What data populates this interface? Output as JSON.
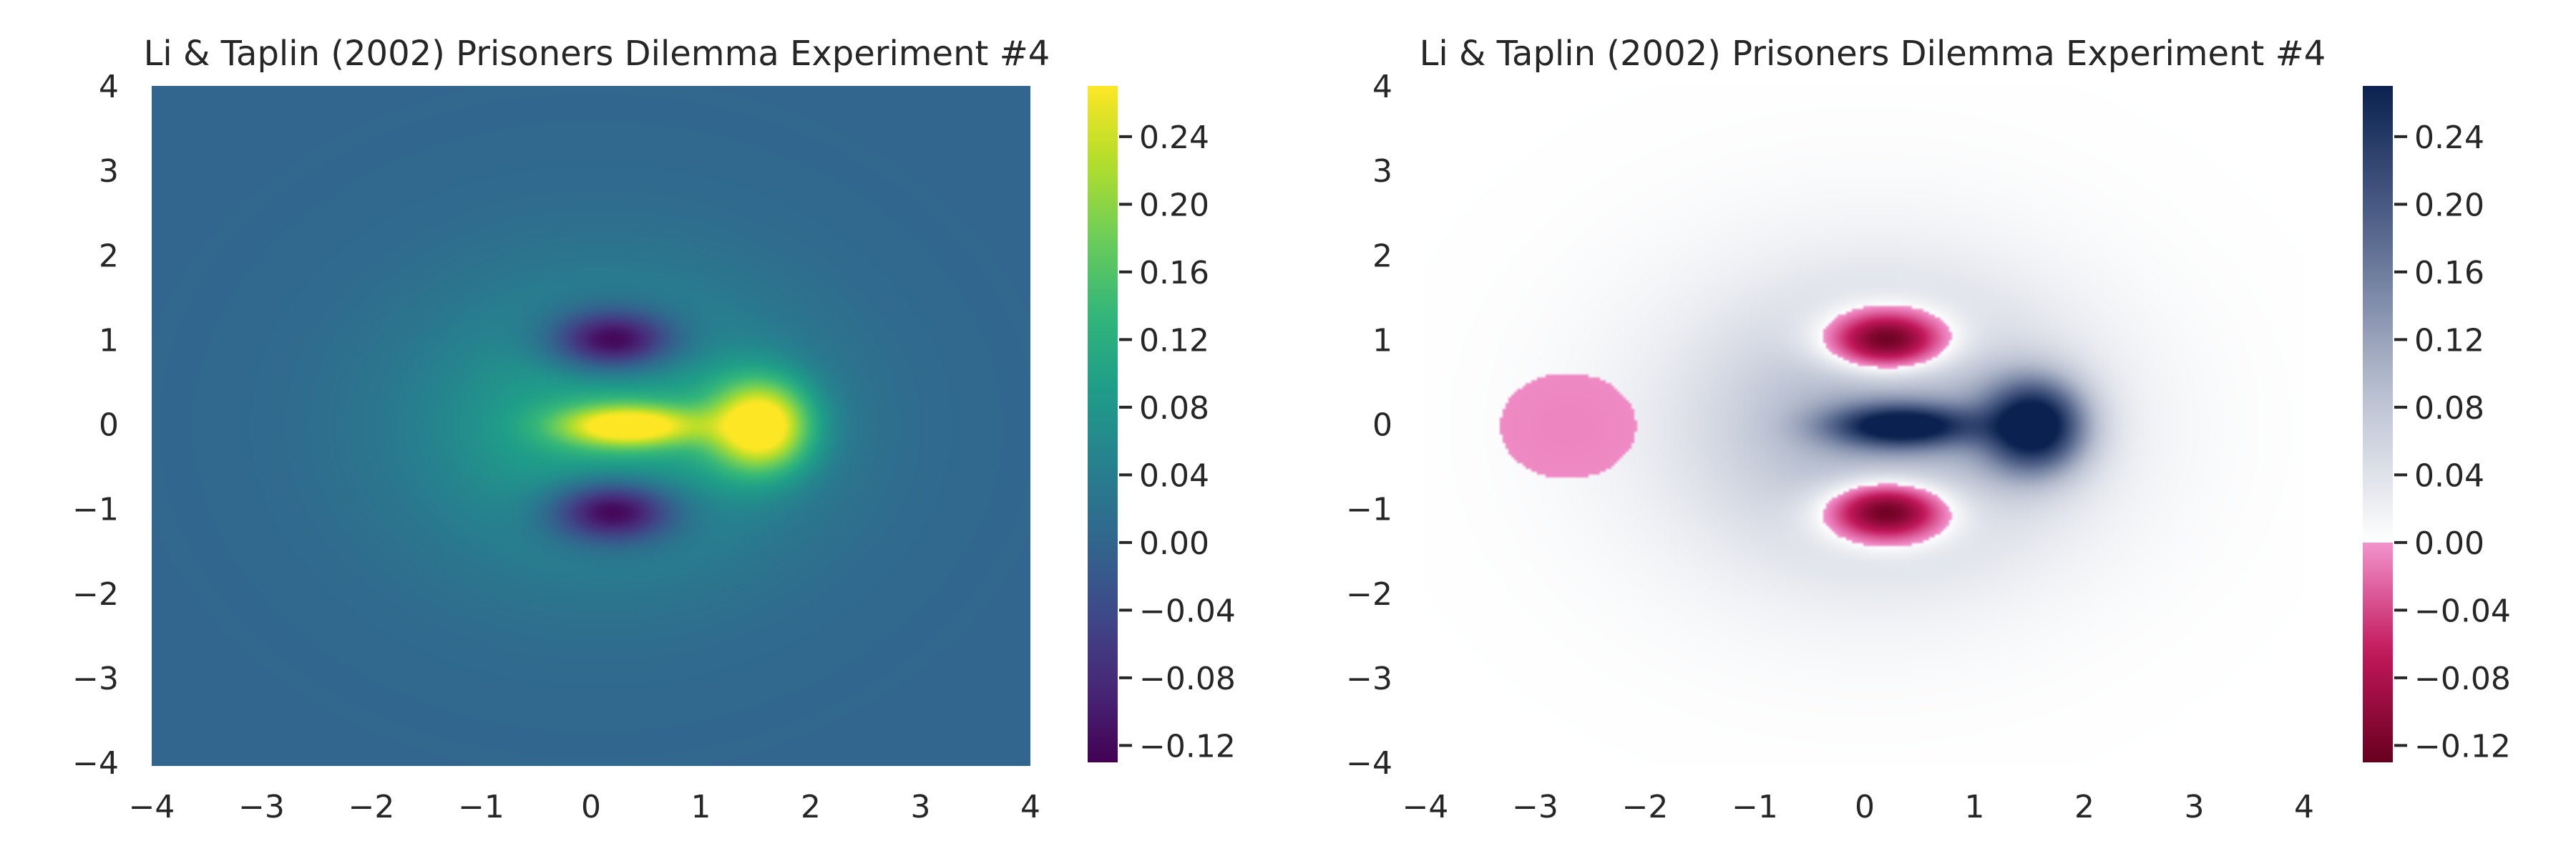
{
  "chart_data": [
    {
      "type": "heatmap",
      "title": "Li & Taplin (2002) Prisoners Dilemma Experiment #4",
      "colormap": "viridis",
      "xlim": [
        -4,
        4
      ],
      "ylim": [
        -4,
        4
      ],
      "xticks": [
        "−4",
        "−3",
        "−2",
        "−1",
        "0",
        "1",
        "2",
        "3",
        "4"
      ],
      "yticks": [
        "4",
        "3",
        "2",
        "1",
        "0",
        "−1",
        "−2",
        "−3",
        "−4"
      ],
      "value_range": [
        -0.13,
        0.27
      ],
      "colorbar_ticks": [
        "0.24",
        "0.20",
        "0.16",
        "0.12",
        "0.08",
        "0.04",
        "0.00",
        "−0.04",
        "−0.08",
        "−0.12"
      ],
      "features": [
        {
          "kind": "peak",
          "x": 1.55,
          "y": 0.0,
          "value": 0.27
        },
        {
          "kind": "peak",
          "x": 0.3,
          "y": 0.0,
          "value": 0.22
        },
        {
          "kind": "trough",
          "x": 0.2,
          "y": 1.0,
          "value": -0.12
        },
        {
          "kind": "trough",
          "x": 0.2,
          "y": -1.0,
          "value": -0.12
        }
      ]
    },
    {
      "type": "heatmap",
      "title": "Li & Taplin (2002) Prisoners Dilemma Experiment #4",
      "colormap": "diverging pink / white / navy",
      "xlim": [
        -4,
        4
      ],
      "ylim": [
        -4,
        4
      ],
      "xticks": [
        "−4",
        "−3",
        "−2",
        "−1",
        "0",
        "1",
        "2",
        "3",
        "4"
      ],
      "yticks": [
        "4",
        "3",
        "2",
        "1",
        "0",
        "−1",
        "−2",
        "−3",
        "−4"
      ],
      "value_range": [
        -0.13,
        0.27
      ],
      "colorbar_ticks": [
        "0.24",
        "0.20",
        "0.16",
        "0.12",
        "0.08",
        "0.04",
        "0.00",
        "−0.04",
        "−0.08",
        "−0.12"
      ],
      "features": [
        {
          "kind": "peak",
          "x": 1.55,
          "y": 0.0,
          "value": 0.27
        },
        {
          "kind": "peak",
          "x": 0.3,
          "y": 0.0,
          "value": 0.22
        },
        {
          "kind": "trough",
          "x": 0.2,
          "y": 1.0,
          "value": -0.12
        },
        {
          "kind": "trough",
          "x": 0.2,
          "y": -1.0,
          "value": -0.12
        },
        {
          "kind": "negative-region",
          "x": -2.7,
          "y": 0.0,
          "value": -0.01
        }
      ]
    }
  ],
  "colors": {
    "viridis": [
      "#440154",
      "#482878",
      "#3e4a89",
      "#31688e",
      "#26828e",
      "#1f9e89",
      "#35b779",
      "#6ece58",
      "#b5de2b",
      "#fde725"
    ],
    "diverging_negative": [
      "#67001f",
      "#c2185b",
      "#f394ce"
    ],
    "diverging_positive": [
      "#ffffff",
      "#b8bfd0",
      "#5a6a90",
      "#0b2250"
    ]
  }
}
